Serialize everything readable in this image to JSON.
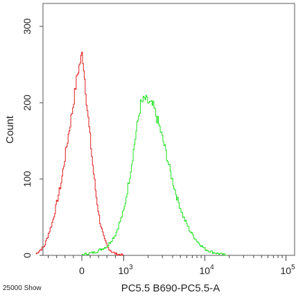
{
  "chart_data": {
    "type": "line",
    "title": "",
    "xlabel": "PC5.5 B690-PC5.5-A",
    "ylabel": "Count",
    "x_scale": "logicle",
    "y_ticks": [
      {
        "value": 0,
        "label": "0"
      },
      {
        "value": 100,
        "label": "100"
      },
      {
        "value": 200,
        "label": "200"
      },
      {
        "value": 300,
        "label": "300"
      }
    ],
    "x_ticks": [
      {
        "value": 0,
        "base": "0",
        "exp": ""
      },
      {
        "value": 1000,
        "base": "10",
        "exp": "3"
      },
      {
        "value": 10000,
        "base": "10",
        "exp": "4"
      },
      {
        "value": 100000,
        "base": "10",
        "exp": "5"
      }
    ],
    "ylim": [
      0,
      330
    ],
    "footer_note": "25000 Show",
    "grid": false,
    "series": [
      {
        "color": "#e21a1a",
        "x": [
          -1100,
          -900,
          -700,
          -500,
          -350,
          -220,
          -120,
          -40,
          0,
          40,
          100,
          170,
          250,
          330,
          420,
          520,
          620,
          700,
          800,
          900,
          1000
        ],
        "values": [
          2,
          12,
          45,
          95,
          150,
          195,
          235,
          255,
          265,
          245,
          205,
          165,
          120,
          80,
          45,
          22,
          10,
          5,
          2,
          1,
          0
        ]
      },
      {
        "color": "#1fe01f",
        "x": [
          0,
          300,
          600,
          800,
          1000,
          1200,
          1400,
          1600,
          1800,
          2000,
          2300,
          2700,
          3200,
          3800,
          4500,
          5400,
          6500,
          8000,
          10000,
          12500,
          15000,
          19000
        ],
        "values": [
          1,
          4,
          12,
          28,
          60,
          110,
          160,
          198,
          205,
          200,
          195,
          170,
          140,
          105,
          75,
          50,
          32,
          18,
          8,
          4,
          2,
          0
        ]
      }
    ]
  }
}
